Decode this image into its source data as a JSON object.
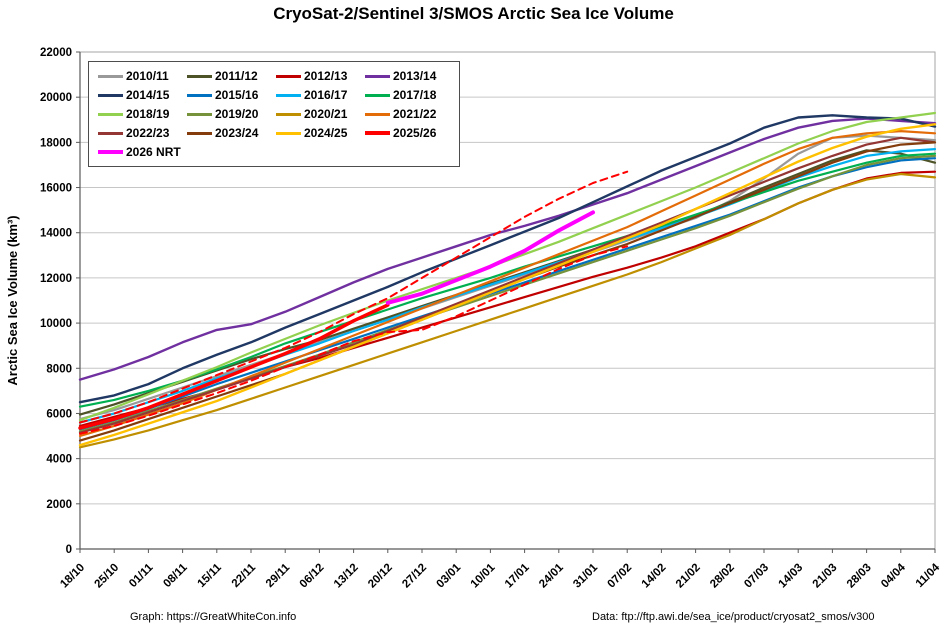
{
  "page": {
    "title": "CryoSat-2/Sentinel 3/SMOS Arctic Sea Ice Volume"
  },
  "footer": {
    "left": "Graph: https://GreatWhiteCon.info",
    "right": "Data: ftp://ftp.awi.de/sea_ice/product/cryosat2_smos/v300"
  },
  "chart_data": {
    "type": "line",
    "title": "CryoSat-2/Sentinel 3/SMOS Arctic Sea Ice Volume",
    "xlabel": "",
    "ylabel": "Arctic Sea Ice Volume (km³)",
    "y_axis": {
      "min": 0,
      "max": 22000,
      "step": 2000
    },
    "grid": "horizontal",
    "legend_position": "top-left-inside",
    "categories": [
      "18/10",
      "25/10",
      "01/11",
      "08/11",
      "15/11",
      "22/11",
      "29/11",
      "06/12",
      "13/12",
      "20/12",
      "27/12",
      "03/01",
      "10/01",
      "17/01",
      "24/01",
      "31/01",
      "07/02",
      "14/02",
      "21/02",
      "28/02",
      "07/03",
      "14/03",
      "21/03",
      "28/03",
      "04/04",
      "11/04"
    ],
    "series": [
      {
        "label": "2010/11",
        "color": "#999999",
        "width": 2.2,
        "values": [
          5750,
          6150,
          6650,
          7150,
          7650,
          8150,
          8650,
          9150,
          9650,
          10150,
          10650,
          11150,
          11650,
          12150,
          12650,
          13150,
          13650,
          14150,
          14650,
          15400,
          16400,
          17500,
          18200,
          18300,
          18200,
          18100
        ]
      },
      {
        "label": "2011/12",
        "color": "#4E5327",
        "width": 2.2,
        "values": [
          5950,
          6400,
          6900,
          7400,
          7900,
          8400,
          8850,
          9250,
          9750,
          10250,
          10750,
          11250,
          11750,
          12250,
          12750,
          13250,
          13750,
          14250,
          14750,
          15350,
          16000,
          16600,
          17200,
          17650,
          17500,
          17100
        ]
      },
      {
        "label": "2012/13",
        "color": "#C00000",
        "width": 2.2,
        "values": [
          5450,
          5850,
          6250,
          6650,
          7050,
          7550,
          8050,
          8450,
          8900,
          9350,
          9800,
          10250,
          10700,
          11150,
          11600,
          12050,
          12450,
          12900,
          13400,
          14000,
          14600,
          15300,
          15900,
          16400,
          16650,
          16700
        ]
      },
      {
        "label": "2013/14",
        "color": "#7030A0",
        "width": 2.4,
        "values": [
          7500,
          7950,
          8500,
          9150,
          9700,
          9950,
          10500,
          11150,
          11800,
          12400,
          12900,
          13400,
          13900,
          14300,
          14750,
          15250,
          15750,
          16350,
          16950,
          17550,
          18150,
          18650,
          18950,
          19050,
          18950,
          18850
        ]
      },
      {
        "label": "2014/15",
        "color": "#1F3864",
        "width": 2.4,
        "values": [
          6500,
          6800,
          7300,
          8000,
          8600,
          9150,
          9800,
          10400,
          11000,
          11600,
          12250,
          12850,
          13450,
          14050,
          14650,
          15350,
          16050,
          16750,
          17350,
          17950,
          18650,
          19100,
          19200,
          19100,
          19050,
          18700
        ]
      },
      {
        "label": "2015/16",
        "color": "#0070C0",
        "width": 2.2,
        "values": [
          5300,
          5700,
          6200,
          6750,
          7300,
          7800,
          8300,
          8800,
          9300,
          9800,
          10300,
          10800,
          11300,
          11800,
          12300,
          12800,
          13300,
          13800,
          14300,
          14800,
          15400,
          16000,
          16500,
          16900,
          17200,
          17300
        ]
      },
      {
        "label": "2016/17",
        "color": "#00B0F0",
        "width": 2.2,
        "values": [
          5600,
          6000,
          6500,
          7000,
          7550,
          8050,
          8600,
          9100,
          9650,
          10150,
          10700,
          11200,
          11700,
          12200,
          12700,
          13200,
          13700,
          14200,
          14700,
          15250,
          15850,
          16450,
          16950,
          17400,
          17600,
          17700
        ]
      },
      {
        "label": "2017/18",
        "color": "#00B050",
        "width": 2.2,
        "values": [
          6300,
          6600,
          7000,
          7450,
          7950,
          8500,
          9100,
          9600,
          10100,
          10600,
          11100,
          11550,
          12000,
          12500,
          12950,
          13400,
          13850,
          14300,
          14800,
          15300,
          15800,
          16300,
          16700,
          17100,
          17400,
          17500
        ]
      },
      {
        "label": "2018/19",
        "color": "#92D050",
        "width": 2.2,
        "values": [
          5700,
          6250,
          6850,
          7450,
          8050,
          8700,
          9300,
          9900,
          10450,
          11000,
          11500,
          12000,
          12500,
          13050,
          13600,
          14200,
          14800,
          15400,
          16000,
          16650,
          17300,
          17950,
          18500,
          18900,
          19100,
          19300
        ]
      },
      {
        "label": "2019/20",
        "color": "#76933C",
        "width": 2.2,
        "values": [
          5200,
          5600,
          6100,
          6600,
          7100,
          7600,
          8100,
          8600,
          9150,
          9700,
          10200,
          10700,
          11200,
          11700,
          12200,
          12700,
          13200,
          13700,
          14200,
          14750,
          15350,
          15950,
          16500,
          17000,
          17300,
          17400
        ]
      },
      {
        "label": "2020/21",
        "color": "#BF8F00",
        "width": 2.2,
        "values": [
          4500,
          4850,
          5250,
          5700,
          6150,
          6650,
          7150,
          7650,
          8150,
          8650,
          9150,
          9650,
          10150,
          10650,
          11150,
          11650,
          12150,
          12700,
          13300,
          13900,
          14600,
          15300,
          15900,
          16350,
          16600,
          16450
        ]
      },
      {
        "label": "2021/22",
        "color": "#E36C09",
        "width": 2.2,
        "values": [
          5000,
          5450,
          5950,
          6450,
          7050,
          7650,
          8250,
          8850,
          9450,
          10050,
          10650,
          11250,
          11850,
          12450,
          13050,
          13650,
          14250,
          14950,
          15650,
          16350,
          17050,
          17700,
          18200,
          18400,
          18500,
          18400
        ]
      },
      {
        "label": "2022/23",
        "color": "#943634",
        "width": 2.2,
        "values": [
          5150,
          5550,
          6050,
          6550,
          7050,
          7550,
          8050,
          8550,
          9050,
          9650,
          10250,
          10850,
          11450,
          12050,
          12650,
          13250,
          13850,
          14450,
          15050,
          15650,
          16250,
          16850,
          17400,
          17900,
          18200,
          18000
        ]
      },
      {
        "label": "2023/24",
        "color": "#843C0C",
        "width": 2.2,
        "values": [
          4800,
          5250,
          5750,
          6250,
          6750,
          7250,
          7750,
          8350,
          8950,
          9550,
          10150,
          10750,
          11350,
          11950,
          12500,
          13000,
          13500,
          14100,
          14700,
          15300,
          15900,
          16500,
          17100,
          17600,
          17900,
          18000
        ]
      },
      {
        "label": "2024/25",
        "color": "#FFC000",
        "width": 2.4,
        "values": [
          4600,
          5050,
          5550,
          6050,
          6550,
          7150,
          7750,
          8350,
          8950,
          9550,
          10150,
          10750,
          11350,
          11950,
          12550,
          13150,
          13750,
          14350,
          15050,
          15750,
          16450,
          17150,
          17750,
          18250,
          18600,
          18800
        ]
      },
      {
        "label": "2025/26",
        "color": "#FF0000",
        "width": 3.5,
        "values": [
          5350,
          5750,
          6250,
          6850,
          7450,
          8050,
          8650,
          9300,
          10100,
          10800,
          null,
          null,
          null,
          null,
          null,
          null,
          null,
          null,
          null,
          null,
          null,
          null,
          null,
          null,
          null,
          null
        ]
      },
      {
        "label": "2026 NRT",
        "color": "#FF00FF",
        "width": 4,
        "values": [
          null,
          null,
          null,
          null,
          null,
          null,
          null,
          null,
          null,
          10900,
          11300,
          11900,
          12500,
          13200,
          14100,
          14900,
          null,
          null,
          null,
          null,
          null,
          null,
          null,
          null,
          null,
          null
        ]
      }
    ],
    "uncertainty_band": [
      {
        "name": "2025/26 NRT upper bound",
        "color": "#FF0000",
        "width": 2,
        "dash": "7 5",
        "values": [
          5600,
          6000,
          6500,
          7100,
          7700,
          8300,
          8900,
          9600,
          10400,
          11100,
          12000,
          12900,
          13800,
          14700,
          15500,
          16200,
          16700,
          null,
          null,
          null,
          null,
          null,
          null,
          null,
          null,
          null
        ]
      },
      {
        "name": "2025/26 NRT lower bound",
        "color": "#FF0000",
        "width": 2,
        "dash": "7 5",
        "values": [
          5100,
          5450,
          5900,
          6400,
          6900,
          7450,
          8050,
          8600,
          9200,
          9600,
          9700,
          10300,
          11000,
          11700,
          12400,
          13000,
          13400,
          null,
          null,
          null,
          null,
          null,
          null,
          null,
          null,
          null
        ]
      }
    ]
  }
}
